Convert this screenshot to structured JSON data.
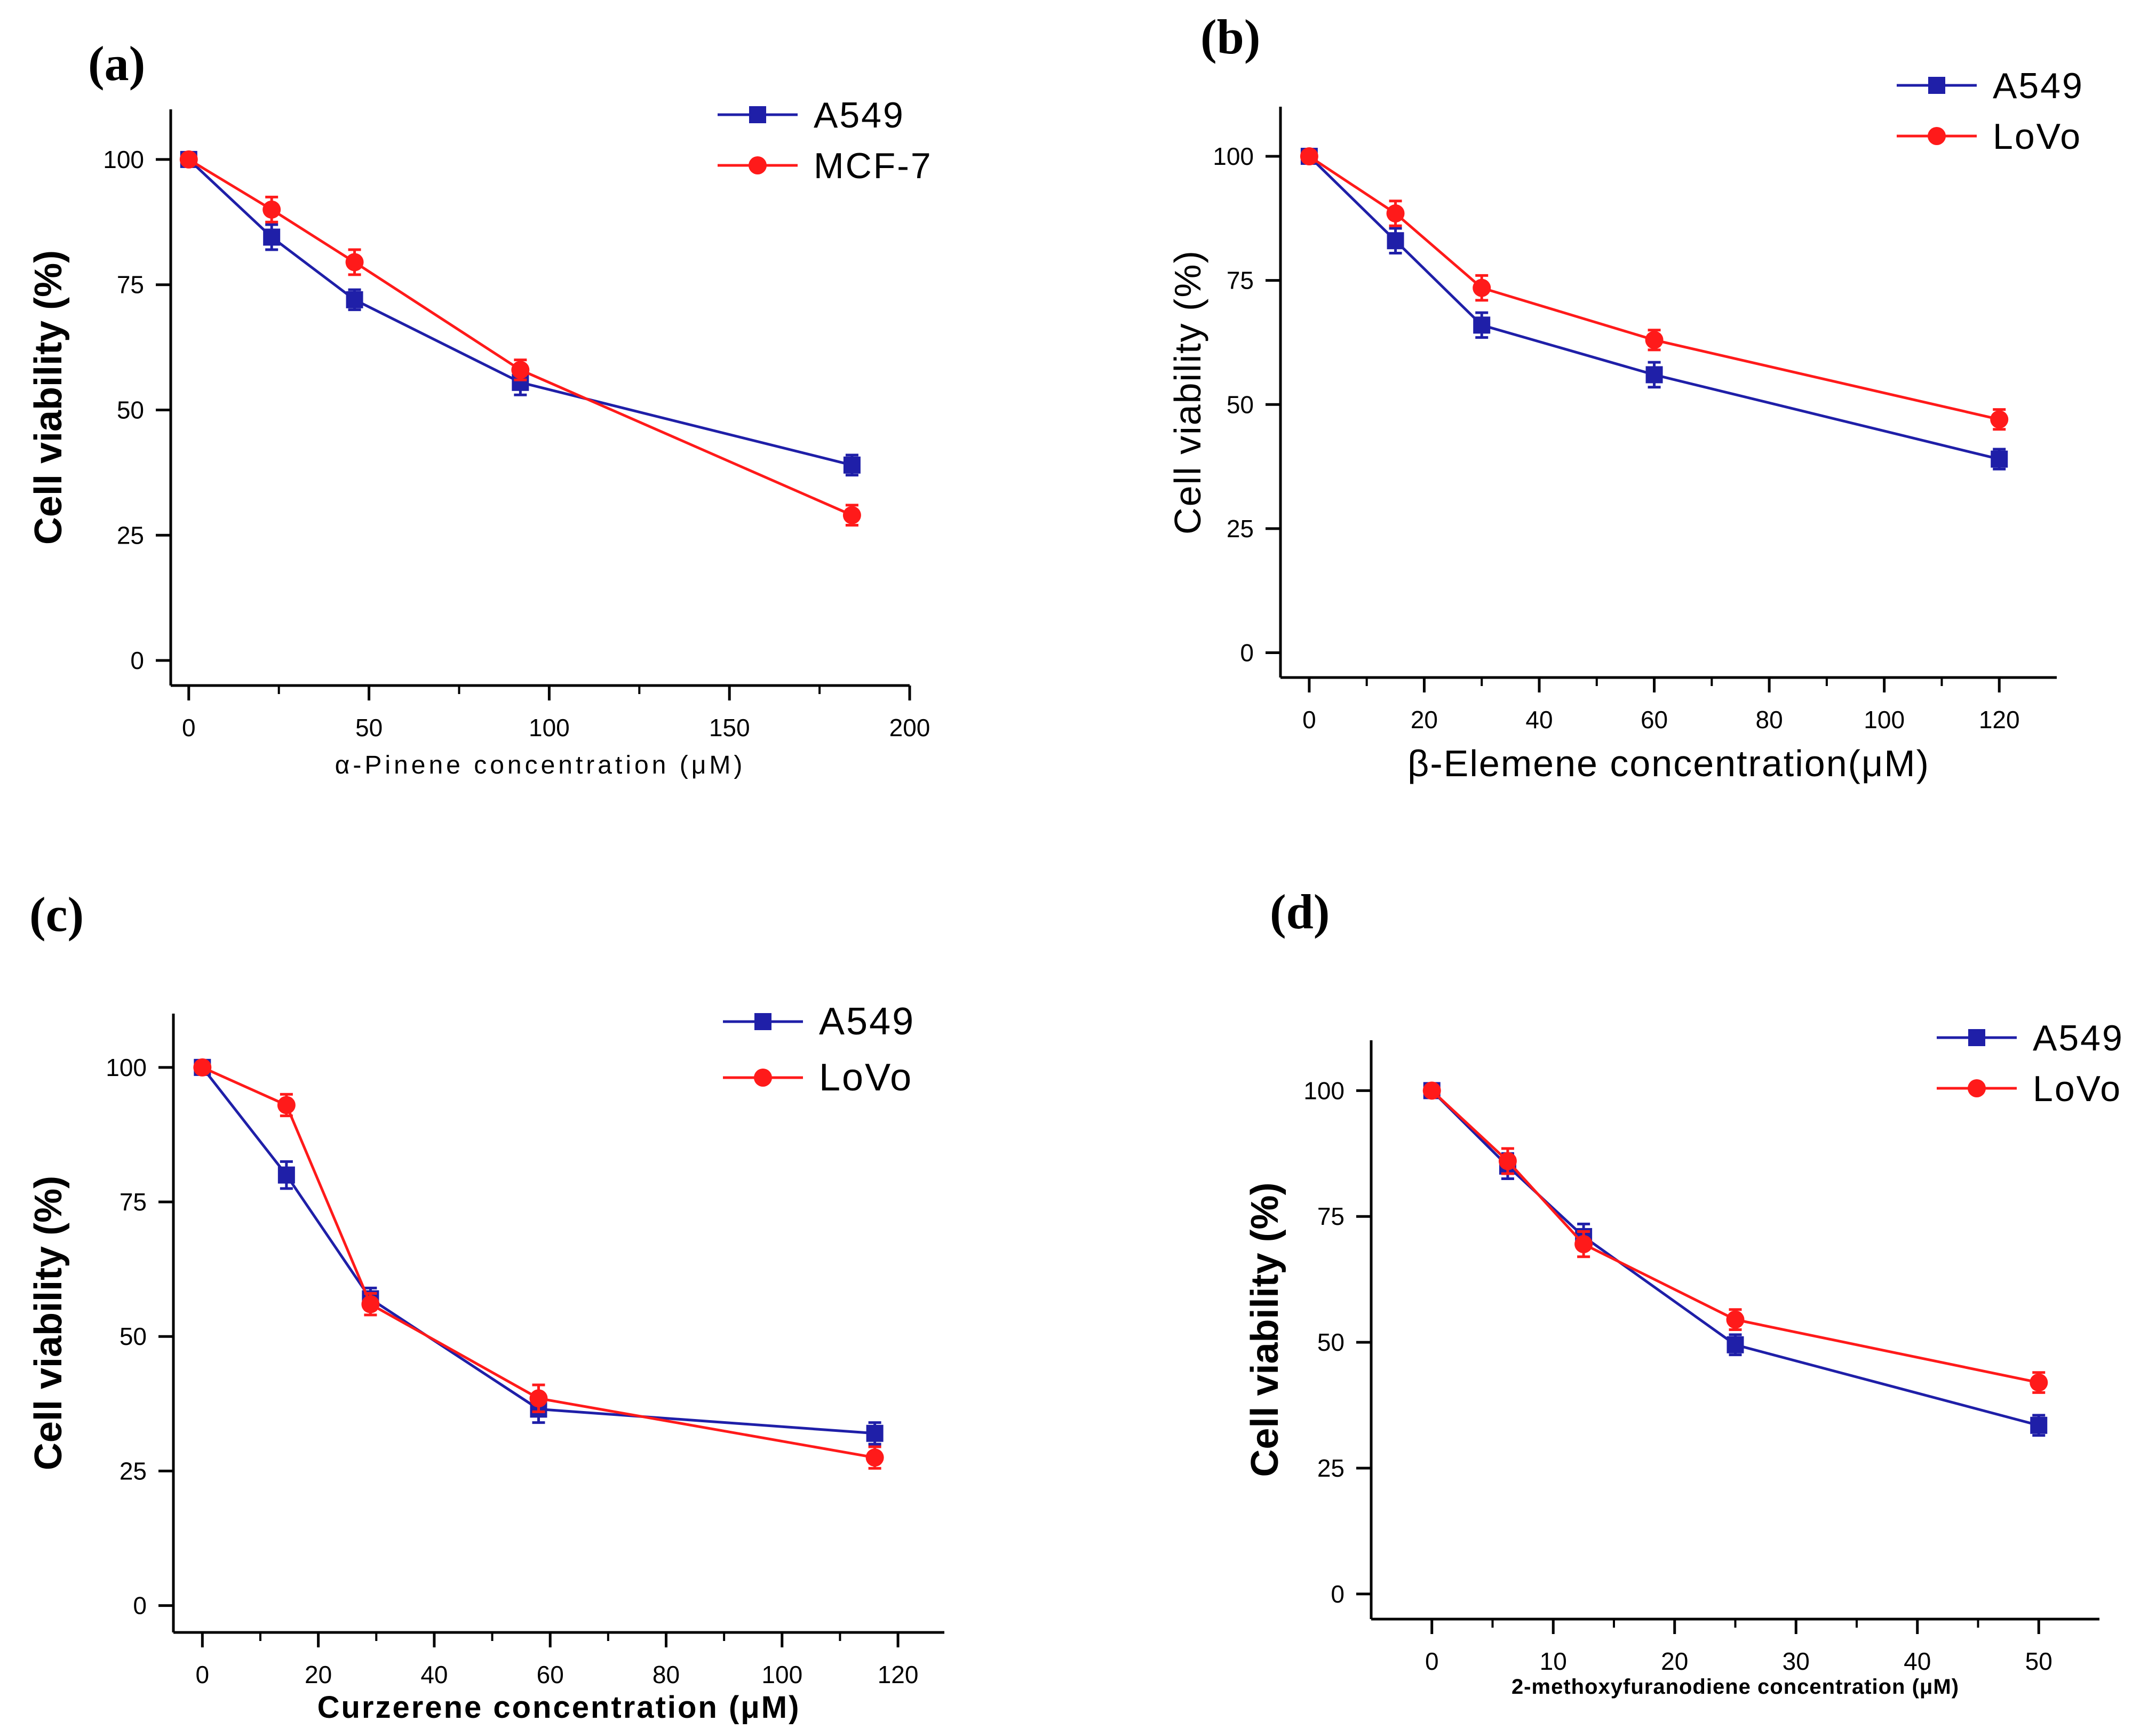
{
  "chart_data": [
    {
      "type": "line",
      "panel_label": "(a)",
      "title": "",
      "xlabel": "α-Pinene concentration (μM)",
      "ylabel": "Cell viability (%)",
      "xlim": [
        -5,
        200
      ],
      "ylim": [
        -5,
        110
      ],
      "xticks": [
        0,
        50,
        100,
        150,
        200
      ],
      "yticks": [
        0,
        25,
        50,
        75,
        100
      ],
      "x": [
        0,
        23,
        46,
        92,
        184
      ],
      "series": [
        {
          "name": "A549",
          "color": "#1f1fa8",
          "marker": "square",
          "values": [
            100,
            84.5,
            72,
            55.5,
            39
          ],
          "errors": [
            1,
            2.5,
            2,
            2.5,
            2
          ]
        },
        {
          "name": "MCF-7",
          "color": "#ff1a1a",
          "marker": "circle",
          "values": [
            100,
            90,
            79.5,
            58,
            29
          ],
          "errors": [
            1,
            2.5,
            2.5,
            2,
            2
          ]
        }
      ],
      "legend": "top-right"
    },
    {
      "type": "line",
      "panel_label": "(b)",
      "title": "",
      "xlabel": "β-Elemene concentration(μM)",
      "ylabel": "Cell viability (%)",
      "xlim": [
        -5,
        130
      ],
      "ylim": [
        -5,
        110
      ],
      "xticks": [
        0,
        20,
        40,
        60,
        80,
        100,
        120
      ],
      "yticks": [
        0,
        25,
        50,
        75,
        100
      ],
      "x": [
        0,
        15,
        30,
        60,
        120
      ],
      "series": [
        {
          "name": "A549",
          "color": "#1f1fa8",
          "marker": "square",
          "values": [
            100,
            83,
            66,
            56,
            39
          ],
          "errors": [
            1,
            2.5,
            2.5,
            2.5,
            2
          ]
        },
        {
          "name": "LoVo",
          "color": "#ff1a1a",
          "marker": "circle",
          "values": [
            100,
            88.5,
            73.5,
            63,
            47
          ],
          "errors": [
            1,
            2.5,
            2.5,
            2,
            2
          ]
        }
      ],
      "legend": "top-right"
    },
    {
      "type": "line",
      "panel_label": "(c)",
      "title": "",
      "xlabel": "Curzerene concentration (μM)",
      "ylabel": "Cell viability (%)",
      "xlim": [
        -5,
        128
      ],
      "ylim": [
        -5,
        110
      ],
      "xticks": [
        0,
        20,
        40,
        60,
        80,
        100,
        120
      ],
      "yticks": [
        0,
        25,
        50,
        75,
        100
      ],
      "x": [
        0,
        14.5,
        29,
        58,
        116
      ],
      "series": [
        {
          "name": "A549",
          "color": "#1f1fa8",
          "marker": "square",
          "values": [
            100,
            80,
            57,
            36.5,
            32
          ],
          "errors": [
            1,
            2.5,
            2,
            2.5,
            2
          ]
        },
        {
          "name": "LoVo",
          "color": "#ff1a1a",
          "marker": "circle",
          "values": [
            100,
            93,
            56,
            38.5,
            27.5
          ],
          "errors": [
            1,
            2,
            2,
            2.5,
            2
          ]
        }
      ],
      "legend": "top-right"
    },
    {
      "type": "line",
      "panel_label": "(d)",
      "title": "",
      "xlabel": "2-methoxyfuranodiene concentration (μM)",
      "ylabel": "Cell viability (%)",
      "xlim": [
        -5,
        55
      ],
      "ylim": [
        -5,
        110
      ],
      "xticks": [
        0,
        10,
        20,
        30,
        40,
        50
      ],
      "yticks": [
        0,
        25,
        50,
        75,
        100
      ],
      "x": [
        0,
        6.25,
        12.5,
        25,
        50
      ],
      "series": [
        {
          "name": "A549",
          "color": "#1f1fa8",
          "marker": "square",
          "values": [
            100,
            85,
            71,
            49.5,
            33.5
          ],
          "errors": [
            1,
            2.5,
            2.5,
            2,
            2
          ]
        },
        {
          "name": "LoVo",
          "color": "#ff1a1a",
          "marker": "circle",
          "values": [
            100,
            86,
            69.5,
            54.5,
            42
          ],
          "errors": [
            1,
            2.5,
            2.5,
            2,
            2
          ]
        }
      ],
      "legend": "top-right"
    }
  ]
}
